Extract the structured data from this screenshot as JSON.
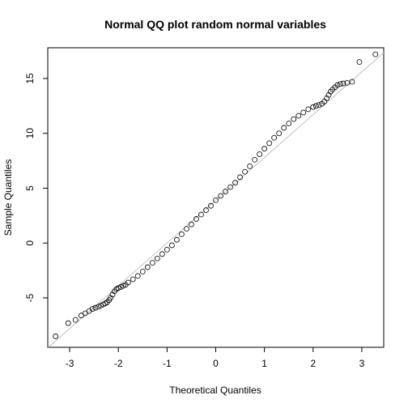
{
  "chart_data": {
    "type": "scatter",
    "title": "Normal QQ plot random normal variables",
    "xlabel": "Theoretical Quantiles",
    "ylabel": "Sample Quantiles",
    "xlim": [
      -3.45,
      3.45
    ],
    "ylim": [
      -9.5,
      17.8
    ],
    "x_ticks": [
      -3,
      -2,
      -1,
      0,
      1,
      2,
      3
    ],
    "y_ticks": [
      -5,
      0,
      5,
      10,
      15
    ],
    "grid": false,
    "legend": "none",
    "reference_line": {
      "intercept": 3.9,
      "slope": 3.9,
      "color": "#bebebe"
    },
    "series": [
      {
        "marker": "open-circle",
        "color": "#000000",
        "points": [
          [
            -3.29,
            -8.5
          ],
          [
            -3.03,
            -7.3
          ],
          [
            -2.88,
            -7.0
          ],
          [
            -2.76,
            -6.6
          ],
          [
            -2.68,
            -6.4
          ],
          [
            -2.6,
            -6.2
          ],
          [
            -2.53,
            -6.0
          ],
          [
            -2.47,
            -5.9
          ],
          [
            -2.41,
            -5.8
          ],
          [
            -2.36,
            -5.7
          ],
          [
            -2.31,
            -5.6
          ],
          [
            -2.27,
            -5.5
          ],
          [
            -2.23,
            -5.4
          ],
          [
            -2.19,
            -5.2
          ],
          [
            -2.16,
            -5.0
          ],
          [
            -2.12,
            -4.7
          ],
          [
            -2.08,
            -4.4
          ],
          [
            -2.04,
            -4.2
          ],
          [
            -2.0,
            -4.1
          ],
          [
            -1.95,
            -4.0
          ],
          [
            -1.9,
            -3.9
          ],
          [
            -1.85,
            -3.8
          ],
          [
            -1.8,
            -3.6
          ],
          [
            -1.7,
            -3.3
          ],
          [
            -1.6,
            -3.0
          ],
          [
            -1.5,
            -2.6
          ],
          [
            -1.4,
            -2.2
          ],
          [
            -1.3,
            -1.8
          ],
          [
            -1.2,
            -1.4
          ],
          [
            -1.1,
            -1.0
          ],
          [
            -1.0,
            -0.6
          ],
          [
            -0.9,
            -0.2
          ],
          [
            -0.8,
            0.3
          ],
          [
            -0.7,
            0.8
          ],
          [
            -0.6,
            1.3
          ],
          [
            -0.5,
            1.7
          ],
          [
            -0.4,
            2.2
          ],
          [
            -0.3,
            2.6
          ],
          [
            -0.2,
            3.0
          ],
          [
            -0.1,
            3.4
          ],
          [
            0.0,
            3.9
          ],
          [
            0.1,
            4.3
          ],
          [
            0.2,
            4.7
          ],
          [
            0.3,
            5.1
          ],
          [
            0.4,
            5.5
          ],
          [
            0.5,
            6.0
          ],
          [
            0.6,
            6.5
          ],
          [
            0.7,
            7.0
          ],
          [
            0.8,
            7.6
          ],
          [
            0.9,
            8.1
          ],
          [
            1.0,
            8.6
          ],
          [
            1.1,
            9.1
          ],
          [
            1.2,
            9.6
          ],
          [
            1.3,
            10.0
          ],
          [
            1.4,
            10.5
          ],
          [
            1.5,
            10.9
          ],
          [
            1.6,
            11.3
          ],
          [
            1.7,
            11.6
          ],
          [
            1.8,
            11.9
          ],
          [
            1.9,
            12.2
          ],
          [
            2.0,
            12.4
          ],
          [
            2.06,
            12.5
          ],
          [
            2.12,
            12.6
          ],
          [
            2.18,
            12.7
          ],
          [
            2.23,
            12.9
          ],
          [
            2.28,
            13.2
          ],
          [
            2.32,
            13.5
          ],
          [
            2.36,
            13.8
          ],
          [
            2.4,
            14.0
          ],
          [
            2.45,
            14.2
          ],
          [
            2.5,
            14.4
          ],
          [
            2.56,
            14.5
          ],
          [
            2.62,
            14.55
          ],
          [
            2.7,
            14.6
          ],
          [
            2.8,
            14.7
          ],
          [
            2.95,
            16.5
          ],
          [
            3.28,
            17.2
          ]
        ]
      }
    ]
  }
}
